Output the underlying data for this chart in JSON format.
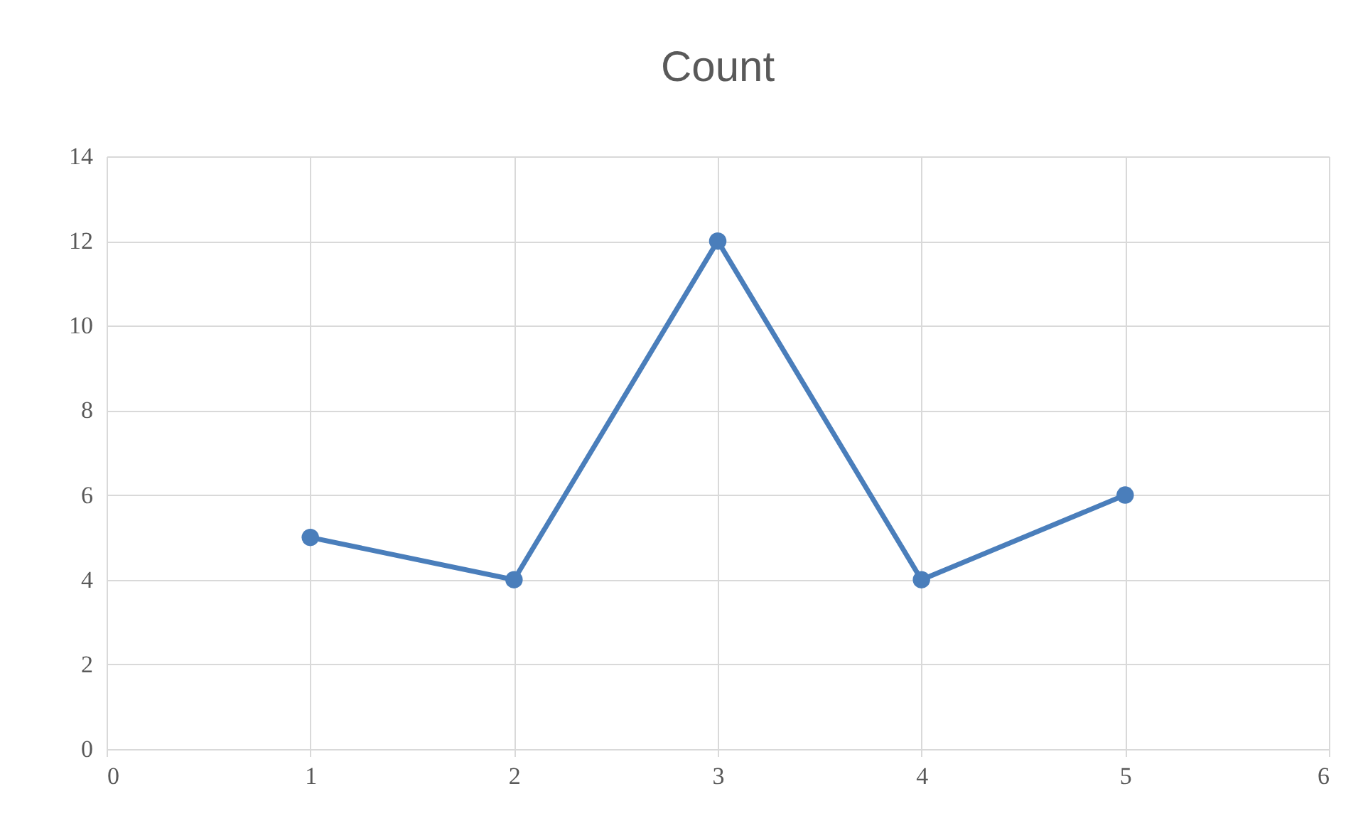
{
  "chart_data": {
    "type": "line",
    "title": "Count",
    "x": [
      1,
      2,
      3,
      4,
      5
    ],
    "series": [
      {
        "color": "#4a7ebb",
        "values": [
          5,
          4,
          12,
          4,
          6
        ]
      }
    ],
    "xlim": [
      0,
      6
    ],
    "xticks": [
      0,
      1,
      2,
      3,
      4,
      5,
      6
    ],
    "ylim": [
      0,
      14
    ],
    "yticks": [
      0,
      2,
      4,
      6,
      8,
      10,
      12,
      14
    ],
    "grid": true,
    "marker": "circle",
    "line_style": "solid"
  }
}
